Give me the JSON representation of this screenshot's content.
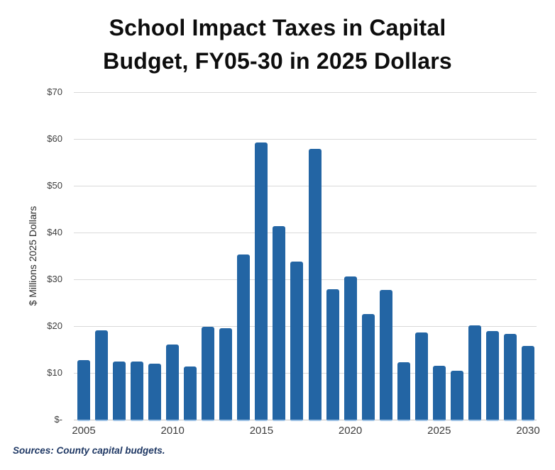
{
  "title": {
    "line1": "School Impact Taxes in Capital",
    "line2": "Budget, FY05-30 in 2025 Dollars"
  },
  "source_note": "Sources: County capital budgets.",
  "colors": {
    "bar": "#2365a4",
    "bar_base_strip": "#9cc0e4",
    "gridline": "#d9d9d9",
    "title_text": "#0d0d0d",
    "axis_text": "#3d3d3d",
    "source_text": "#1f3864"
  },
  "chart_data": {
    "type": "bar",
    "title": "School Impact Taxes in Capital Budget, FY05-30 in 2025 Dollars",
    "xlabel": "",
    "ylabel": "$ Millions 2025 Dollars",
    "x": [
      2005,
      2006,
      2007,
      2008,
      2009,
      2010,
      2011,
      2012,
      2013,
      2014,
      2015,
      2016,
      2017,
      2018,
      2019,
      2020,
      2021,
      2022,
      2023,
      2024,
      2025,
      2026,
      2027,
      2028,
      2029,
      2030
    ],
    "values": [
      12.7,
      19.1,
      12.5,
      12.4,
      11.9,
      16.1,
      11.4,
      19.9,
      19.5,
      35.3,
      59.2,
      41.4,
      33.8,
      57.9,
      27.9,
      30.6,
      22.6,
      27.7,
      12.3,
      18.7,
      11.5,
      10.4,
      20.1,
      18.9,
      18.4,
      15.7
    ],
    "ylim": [
      0,
      70
    ],
    "ytick_step": 10,
    "ytick_labels": [
      "$-",
      "$10",
      "$20",
      "$30",
      "$40",
      "$50",
      "$60",
      "$70"
    ],
    "xtick_years": [
      2005,
      2010,
      2015,
      2020,
      2025,
      2030
    ],
    "grid": true,
    "legend": "none"
  }
}
